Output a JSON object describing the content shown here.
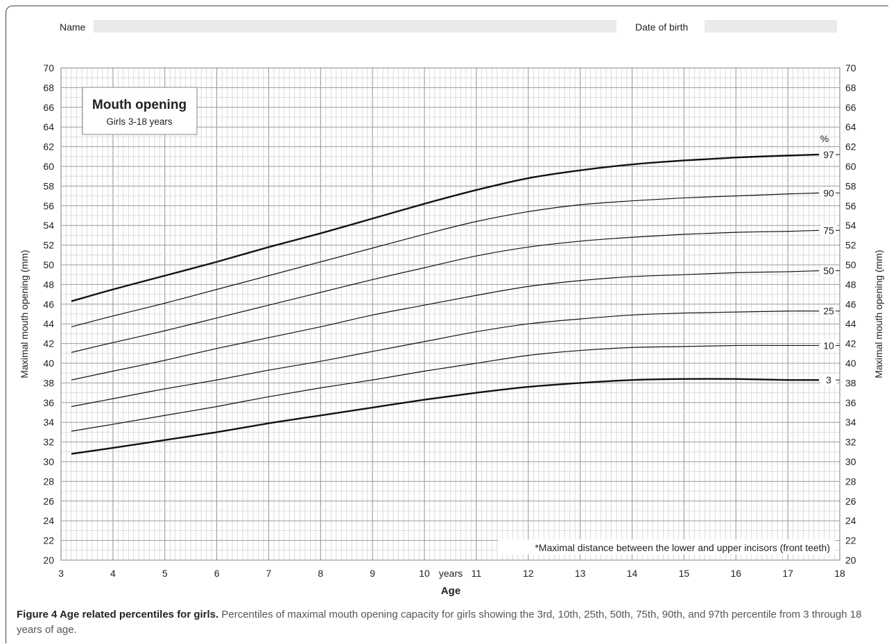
{
  "form": {
    "name_label": "Name",
    "dob_label": "Date of birth"
  },
  "caption": {
    "bold": "Figure 4 Age related percentiles for girls.",
    "text": "Percentiles of maximal mouth opening capacity for girls showing the 3rd, 10th, 25th, 50th, 75th, 90th, and 97th percentile from 3 through 18 years of age."
  },
  "colors": {
    "grid_minor": "#d3d3d3",
    "grid_major": "#9a9a9a",
    "curve": "#111111",
    "field": "#eaeaea"
  },
  "chart_data": {
    "type": "line",
    "title": "Mouth opening",
    "subtitle": "Girls 3-18 years",
    "xlabel": "Age",
    "x_unit_label": "years",
    "ylabel": "Maximal mouth opening (mm)",
    "percent_label": "%",
    "footnote": "*Maximal distance between the lower and upper incisors (front teeth)",
    "xlim": [
      3,
      18
    ],
    "ylim": [
      20,
      70
    ],
    "x_ticks": [
      3,
      4,
      5,
      6,
      7,
      8,
      9,
      10,
      11,
      12,
      13,
      14,
      15,
      16,
      17,
      18
    ],
    "y_ticks": [
      20,
      22,
      24,
      26,
      28,
      30,
      32,
      34,
      36,
      38,
      40,
      42,
      44,
      46,
      48,
      50,
      52,
      54,
      56,
      58,
      60,
      62,
      64,
      66,
      68,
      70
    ],
    "grid": true,
    "x": [
      3.2,
      4,
      5,
      6,
      7,
      8,
      9,
      10,
      11,
      12,
      13,
      14,
      15,
      16,
      17,
      17.6
    ],
    "series": [
      {
        "name": "97",
        "bold": true,
        "values": [
          46.3,
          47.5,
          48.9,
          50.3,
          51.8,
          53.2,
          54.7,
          56.2,
          57.6,
          58.8,
          59.6,
          60.2,
          60.6,
          60.9,
          61.1,
          61.2
        ]
      },
      {
        "name": "90",
        "bold": false,
        "values": [
          43.7,
          44.8,
          46.1,
          47.5,
          48.9,
          50.3,
          51.7,
          53.1,
          54.4,
          55.4,
          56.1,
          56.5,
          56.8,
          57.0,
          57.2,
          57.3
        ]
      },
      {
        "name": "75",
        "bold": false,
        "values": [
          41.1,
          42.1,
          43.3,
          44.6,
          45.9,
          47.2,
          48.5,
          49.7,
          50.9,
          51.8,
          52.4,
          52.8,
          53.1,
          53.3,
          53.4,
          53.5
        ]
      },
      {
        "name": "50",
        "bold": false,
        "values": [
          38.3,
          39.2,
          40.3,
          41.5,
          42.6,
          43.7,
          44.9,
          45.9,
          46.9,
          47.8,
          48.4,
          48.8,
          49.0,
          49.2,
          49.3,
          49.4
        ]
      },
      {
        "name": "25",
        "bold": false,
        "values": [
          35.6,
          36.4,
          37.4,
          38.3,
          39.3,
          40.2,
          41.2,
          42.2,
          43.2,
          44.0,
          44.5,
          44.9,
          45.1,
          45.2,
          45.3,
          45.3
        ]
      },
      {
        "name": "10",
        "bold": false,
        "values": [
          33.1,
          33.8,
          34.7,
          35.6,
          36.6,
          37.5,
          38.3,
          39.2,
          40.0,
          40.8,
          41.3,
          41.6,
          41.7,
          41.8,
          41.8,
          41.8
        ]
      },
      {
        "name": "3",
        "bold": true,
        "values": [
          30.8,
          31.4,
          32.2,
          33.0,
          33.9,
          34.7,
          35.5,
          36.3,
          37.0,
          37.6,
          38.0,
          38.3,
          38.4,
          38.4,
          38.3,
          38.3
        ]
      }
    ]
  }
}
